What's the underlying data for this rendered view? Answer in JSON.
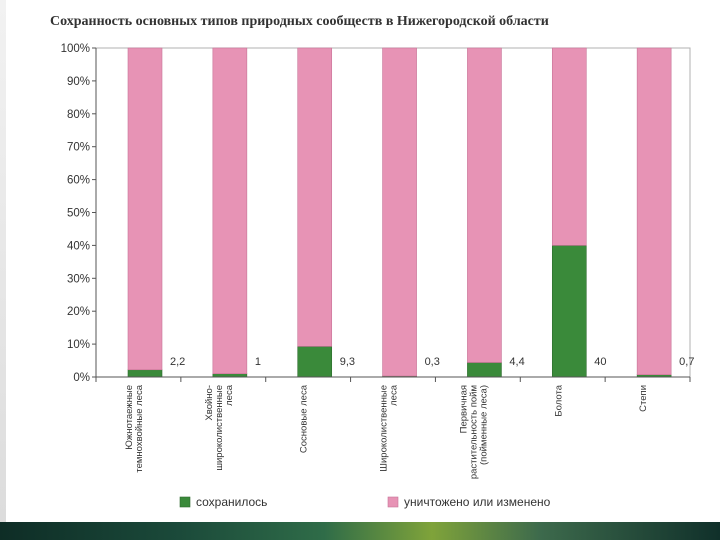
{
  "chart_data": {
    "type": "bar",
    "stacked": true,
    "title": "Сохранность основных типов природных сообществ в Нижегородской области",
    "categories": [
      "Южнотаежные темнохвойные леса",
      "Хвойно-широколиственные леса",
      "Сосновые леса",
      "Широколиственные леса",
      "Первичная растительность пойм (пойменные леса)",
      "Болота",
      "Степи"
    ],
    "category_lines": [
      [
        "Южнотаежные",
        "темнохвойные леса"
      ],
      [
        "Хвойно-",
        "широколиственные",
        "леса"
      ],
      [
        "Сосновые леса"
      ],
      [
        "Широколиственные",
        "леса"
      ],
      [
        "Первичная",
        "растительность пойм",
        "(пойменные леса)"
      ],
      [
        "Болота"
      ],
      [
        "Степи"
      ]
    ],
    "value_labels": [
      "2,2",
      "1",
      "9,3",
      "0,3",
      "4,4",
      "40",
      "0,7"
    ],
    "series": [
      {
        "name": "сохранилось",
        "values": [
          2.2,
          1,
          9.3,
          0.3,
          4.4,
          40,
          0.7
        ],
        "color": "#3a8a3a"
      },
      {
        "name": "уничтожено или изменено",
        "values": [
          97.8,
          99,
          90.7,
          99.7,
          95.6,
          60,
          99.3
        ],
        "color": "#e793b5"
      }
    ],
    "y_ticks": [
      "0%",
      "10%",
      "20%",
      "30%",
      "40%",
      "50%",
      "60%",
      "70%",
      "80%",
      "90%",
      "100%"
    ],
    "ylim": [
      0,
      100
    ],
    "grid": false,
    "legend": "bottom"
  }
}
